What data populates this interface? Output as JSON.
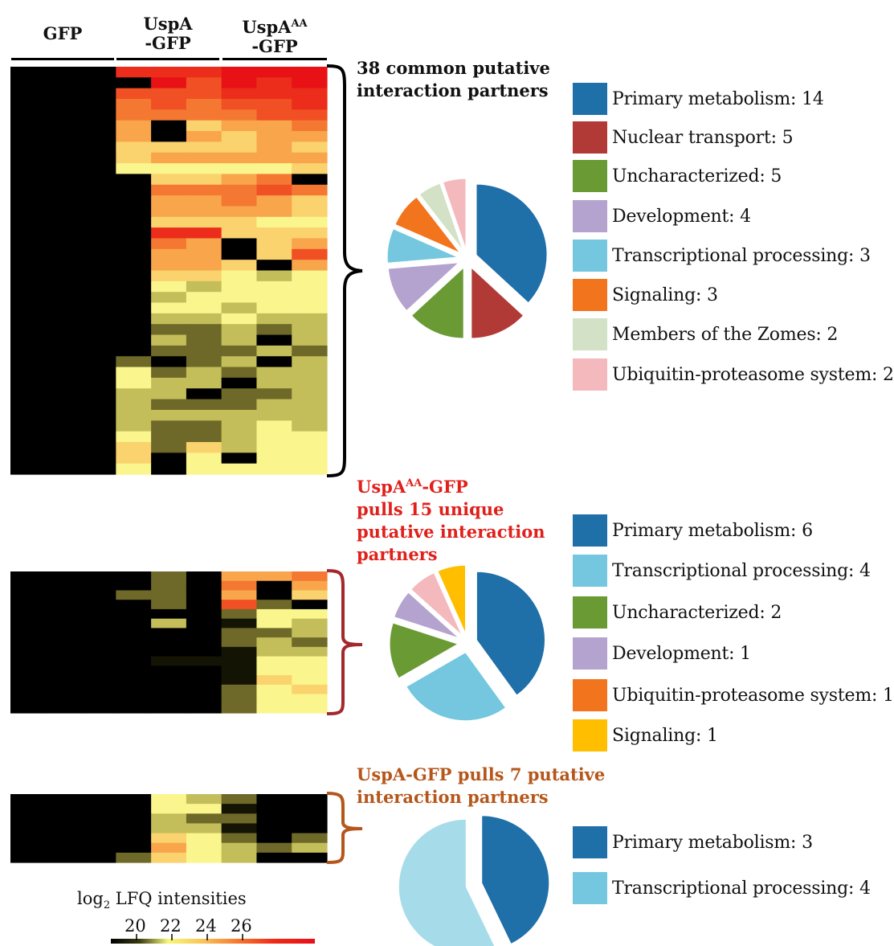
{
  "columns": {
    "gfp": "GFP",
    "uspa_line1": "UspA",
    "uspa_line2": "-GFP",
    "uspaaa_line1": "UspA",
    "uspaaa_sup": "AA",
    "uspaaa_line2": "-GFP"
  },
  "colors": {
    "primary_metabolism": "#1f6fa8",
    "nuclear_transport": "#b23a36",
    "uncharacterized": "#6a9a34",
    "development": "#b4a3ce",
    "transcriptional_processing": "#74c7de",
    "signaling": "#f2741d",
    "members_of_zomes": "#d3e2c6",
    "ubiquitin": "#f3b9bd",
    "signaling_gold": "#ffbe00",
    "group2_bracket": "#a3282c",
    "group3_bracket": "#b5561a",
    "group2_title": "#e0201b",
    "group3_title": "#b5561a"
  },
  "groups": [
    {
      "title_lines": [
        "38 common putative",
        "interaction partners"
      ],
      "legend": [
        "Primary metabolism: 14",
        "Nuclear transport: 5",
        "Uncharacterized: 5",
        "Development: 4",
        "Transcriptional processing: 3",
        "Signaling: 3",
        "Members of the Zomes: 2",
        "Ubiquitin-proteasome system: 2"
      ]
    },
    {
      "title_lines": [
        "UspA",
        "AA",
        "-GFP",
        "pulls 15 unique",
        "putative interaction",
        "partners"
      ],
      "legend": [
        "Primary metabolism: 6",
        "Transcriptional processing: 4",
        "Uncharacterized: 2",
        "Development: 1",
        "Ubiquitin-proteasome system: 1",
        "Signaling: 1"
      ]
    },
    {
      "title_lines": [
        "UspA-GFP pulls 7 putative",
        "interaction partners"
      ],
      "legend": [
        "Primary metabolism: 3",
        "Transcriptional processing: 4"
      ]
    }
  ],
  "colorbar": {
    "label_main": "log",
    "label_sub": "2",
    "label_rest": " LFQ intensities",
    "ticks": [
      "20",
      "22",
      "24",
      "26"
    ]
  },
  "chart_data": [
    {
      "type": "heatmap",
      "title": "",
      "columns": [
        "GFP",
        "GFP",
        "GFP",
        "UspA-GFP",
        "UspA-GFP",
        "UspA-GFP",
        "UspAAA-GFP",
        "UspAAA-GFP",
        "UspAAA-GFP"
      ],
      "rows": 38,
      "value_scale": "log2 LFQ intensities",
      "colorbar_ticks": [
        20,
        22,
        24,
        26
      ],
      "values": [
        [
          0,
          0,
          0,
          27,
          27,
          27,
          28,
          28,
          28
        ],
        [
          0,
          0,
          0,
          0,
          28,
          26,
          28,
          27,
          28
        ],
        [
          0,
          0,
          0,
          26,
          26,
          26,
          27,
          27,
          27
        ],
        [
          0,
          0,
          0,
          25,
          26,
          25,
          26,
          26,
          27
        ],
        [
          0,
          0,
          0,
          25,
          25,
          25,
          25,
          26,
          26
        ],
        [
          0,
          0,
          0,
          24,
          0,
          23,
          24,
          24,
          25
        ],
        [
          0,
          0,
          0,
          24,
          0,
          24,
          23,
          24,
          24
        ],
        [
          0,
          0,
          0,
          23,
          23,
          23,
          23,
          24,
          23
        ],
        [
          0,
          0,
          0,
          23,
          24,
          24,
          24,
          24,
          24
        ],
        [
          0,
          0,
          0,
          22,
          22,
          22,
          22,
          22,
          23
        ],
        [
          0,
          0,
          0,
          0,
          23,
          23,
          24,
          25,
          0
        ],
        [
          0,
          0,
          0,
          0,
          25,
          25,
          25,
          26,
          25
        ],
        [
          0,
          0,
          0,
          0,
          24,
          24,
          25,
          24,
          23
        ],
        [
          0,
          0,
          0,
          0,
          24,
          24,
          24,
          24,
          23
        ],
        [
          0,
          0,
          0,
          0,
          23,
          23,
          23,
          22,
          22
        ],
        [
          0,
          0,
          0,
          0,
          27,
          27,
          23,
          23,
          23
        ],
        [
          0,
          0,
          0,
          0,
          25,
          24,
          0,
          23,
          24
        ],
        [
          0,
          0,
          0,
          0,
          24,
          24,
          0,
          23,
          26
        ],
        [
          0,
          0,
          0,
          0,
          24,
          24,
          23,
          0,
          24
        ],
        [
          0,
          0,
          0,
          0,
          23,
          23,
          22,
          21,
          22
        ],
        [
          0,
          0,
          0,
          0,
          22,
          21,
          22,
          22,
          22
        ],
        [
          0,
          0,
          0,
          0,
          21,
          22,
          22,
          22,
          22
        ],
        [
          0,
          0,
          0,
          0,
          22,
          22,
          21,
          22,
          22
        ],
        [
          0,
          0,
          0,
          0,
          21,
          21,
          22,
          21,
          21
        ],
        [
          0,
          0,
          0,
          0,
          20,
          20,
          21,
          20,
          21
        ],
        [
          0,
          0,
          0,
          0,
          21,
          20,
          21,
          0,
          21
        ],
        [
          0,
          0,
          0,
          0,
          20,
          20,
          20,
          21,
          20
        ],
        [
          0,
          0,
          0,
          20,
          0,
          20,
          21,
          0,
          21
        ],
        [
          0,
          0,
          0,
          22,
          20,
          21,
          20,
          21,
          21
        ],
        [
          0,
          0,
          0,
          22,
          21,
          21,
          0,
          21,
          21
        ],
        [
          0,
          0,
          0,
          21,
          21,
          0,
          20,
          20,
          21
        ],
        [
          0,
          0,
          0,
          21,
          20,
          20,
          20,
          21,
          21
        ],
        [
          0,
          0,
          0,
          21,
          21,
          21,
          21,
          21,
          21
        ],
        [
          0,
          0,
          0,
          21,
          20,
          20,
          21,
          22,
          21
        ],
        [
          0,
          0,
          0,
          22,
          20,
          20,
          21,
          22,
          22
        ],
        [
          0,
          0,
          0,
          23,
          20,
          23,
          21,
          22,
          22
        ],
        [
          0,
          0,
          0,
          23,
          0,
          22,
          0,
          22,
          22
        ],
        [
          0,
          0,
          0,
          22,
          0,
          22,
          22,
          22,
          22
        ]
      ]
    },
    {
      "type": "heatmap",
      "title": "",
      "rows": 15,
      "values": [
        [
          0,
          0,
          0,
          0,
          20,
          0,
          24,
          24,
          25
        ],
        [
          0,
          0,
          0,
          0,
          20,
          0,
          25,
          0,
          24
        ],
        [
          0,
          0,
          0,
          20,
          20,
          0,
          24,
          0,
          23
        ],
        [
          0,
          0,
          0,
          0,
          20,
          0,
          26,
          20,
          0
        ],
        [
          0,
          0,
          0,
          0,
          0,
          0,
          20,
          22,
          22
        ],
        [
          0,
          0,
          0,
          0,
          21,
          0,
          19,
          22,
          21
        ],
        [
          0,
          0,
          0,
          0,
          0,
          0,
          20,
          20,
          21
        ],
        [
          0,
          0,
          0,
          0,
          0,
          0,
          20,
          21,
          20
        ],
        [
          0,
          0,
          0,
          0,
          0,
          0,
          19,
          21,
          21
        ],
        [
          0,
          0,
          0,
          0,
          19,
          19,
          19,
          22,
          22
        ],
        [
          0,
          0,
          0,
          0,
          0,
          0,
          19,
          22,
          22
        ],
        [
          0,
          0,
          0,
          0,
          0,
          0,
          19,
          23,
          22
        ],
        [
          0,
          0,
          0,
          0,
          0,
          0,
          20,
          22,
          23
        ],
        [
          0,
          0,
          0,
          0,
          0,
          0,
          20,
          22,
          22
        ],
        [
          0,
          0,
          0,
          0,
          0,
          0,
          20,
          22,
          22
        ]
      ]
    },
    {
      "type": "heatmap",
      "title": "",
      "rows": 7,
      "values": [
        [
          0,
          0,
          0,
          0,
          22,
          21,
          20,
          0,
          0
        ],
        [
          0,
          0,
          0,
          0,
          22,
          22,
          19,
          0,
          0
        ],
        [
          0,
          0,
          0,
          0,
          21,
          20,
          20,
          0,
          0
        ],
        [
          0,
          0,
          0,
          0,
          21,
          21,
          19,
          0,
          0
        ],
        [
          0,
          0,
          0,
          0,
          23,
          22,
          20,
          0,
          20
        ],
        [
          0,
          0,
          0,
          0,
          24,
          22,
          21,
          20,
          21
        ],
        [
          0,
          0,
          0,
          20,
          23,
          22,
          21,
          0,
          0
        ]
      ]
    },
    {
      "type": "pie",
      "title": "",
      "categories": [
        "Primary metabolism",
        "Nuclear transport",
        "Uncharacterized",
        "Development",
        "Transcriptional processing",
        "Signaling",
        "Members of the Zomes",
        "Ubiquitin-proteasome system"
      ],
      "values": [
        14,
        5,
        5,
        4,
        3,
        3,
        2,
        2
      ]
    },
    {
      "type": "pie",
      "title": "",
      "categories": [
        "Primary metabolism",
        "Transcriptional processing",
        "Uncharacterized",
        "Development",
        "Ubiquitin-proteasome system",
        "Signaling"
      ],
      "values": [
        6,
        4,
        2,
        1,
        1,
        1
      ]
    },
    {
      "type": "pie",
      "title": "",
      "categories": [
        "Primary metabolism",
        "Transcriptional processing"
      ],
      "values": [
        3,
        4
      ]
    }
  ]
}
